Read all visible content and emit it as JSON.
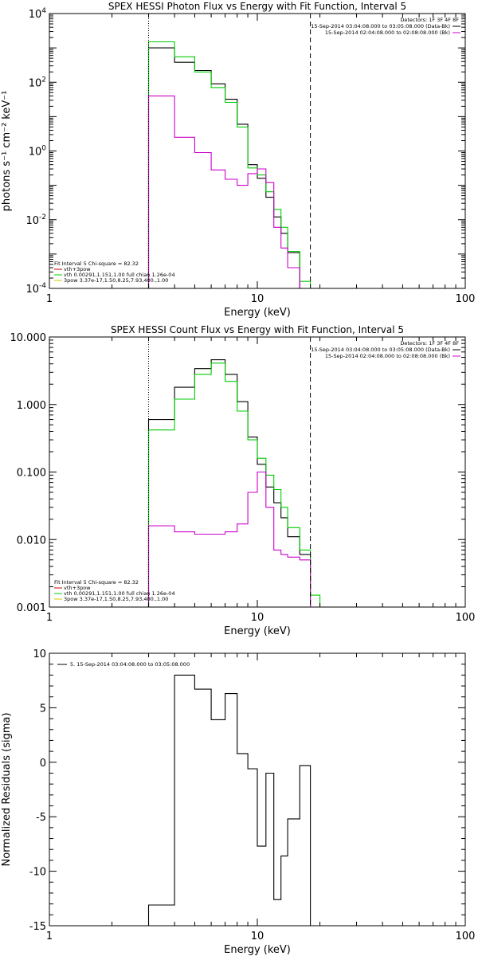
{
  "chart_data": [
    {
      "type": "line",
      "title": "SPEX HESSI Photon Flux vs Energy with Fit Function, Interval 5",
      "xlabel": "Energy (keV)",
      "ylabel": "photons s⁻¹ cm⁻² keV⁻¹",
      "x_scale": "log",
      "y_scale": "log",
      "xlim": [
        1,
        100
      ],
      "ylim": [
        0.0001,
        10000
      ],
      "x_ticks": [
        {
          "value": 1,
          "label": "1"
        },
        {
          "value": 10,
          "label": "10"
        },
        {
          "value": 100,
          "label": "100"
        }
      ],
      "y_ticks": [
        {
          "value": 0.0001,
          "base": "10",
          "exp": "-4"
        },
        {
          "value": 0.01,
          "base": "10",
          "exp": "-2"
        },
        {
          "value": 1,
          "base": "10",
          "exp": "0"
        },
        {
          "value": 100,
          "base": "10",
          "exp": "2"
        },
        {
          "value": 10000,
          "base": "10",
          "exp": "4"
        }
      ],
      "vlines": [
        {
          "x": 3.0,
          "style": "dotted"
        },
        {
          "x": 18.0,
          "style": "dashed"
        }
      ],
      "legend_top_right": {
        "header": "Detectors: 1F 3F 4F 8F",
        "items": [
          {
            "label": "15-Sep-2014 03:04:08.000 to 03:05:08.000 (Data-Bk)",
            "color": "#000000"
          },
          {
            "label": "15-Sep-2014 02:04:08.000 to 02:08:08.000 (Bk)",
            "color": "#cc00cc"
          }
        ]
      },
      "legend_bottom_left": {
        "header": "Fit Interval 5   Chi-square = 82.32",
        "items": [
          {
            "label": "vth+3pow",
            "color": "#cc0000"
          },
          {
            "label": "vth 0.00291,1.151,1.00  full chian 1.26e-04",
            "color": "#00cc00"
          },
          {
            "label": "3pow 3.37e-17,1.50,8.25,7.93,400.,1.00",
            "color": "#cccc00"
          }
        ]
      },
      "series": [
        {
          "name": "15-Sep-2014 03:04:08.000 to 03:05:08.000 (Data-Bk)",
          "color": "#000000",
          "edges": [
            3.0,
            4.0,
            5.0,
            6.0,
            7.0,
            8.0,
            9.0,
            10.0,
            11.0,
            12.0,
            13.0,
            14.0,
            16.0,
            18.0
          ],
          "values": [
            1000,
            380,
            220,
            90,
            32,
            6,
            0.4,
            0.16,
            0.045,
            0.012,
            0.004,
            0.0011,
            0.0001
          ]
        },
        {
          "name": "vth 0.00291,1.151,1.00  full chian 1.26e-04",
          "color": "#00cc00",
          "edges": [
            3.0,
            4.0,
            5.0,
            6.0,
            7.0,
            8.0,
            9.0,
            10.0,
            11.0,
            12.0,
            13.0,
            14.0,
            16.0,
            18.0,
            20.0
          ],
          "values": [
            1500,
            550,
            200,
            70,
            26,
            5,
            0.32,
            0.2,
            0.065,
            0.02,
            0.006,
            0.0012,
            0.00016,
            0.0001
          ]
        },
        {
          "name": "15-Sep-2014 02:04:08.000 to 02:08:08.000 (Bk)",
          "color": "#cc00cc",
          "edges": [
            3.0,
            4.0,
            5.0,
            6.0,
            7.0,
            8.0,
            9.0,
            10.0,
            11.0,
            12.0,
            13.0,
            14.0,
            16.0,
            18.0
          ],
          "values": [
            40,
            2.5,
            0.9,
            0.28,
            0.15,
            0.1,
            0.22,
            0.3,
            0.12,
            0.006,
            0.0015,
            0.0004,
            0.0001
          ]
        }
      ]
    },
    {
      "type": "line",
      "title": "SPEX HESSI Count Flux vs Energy with Fit Function, Interval 5",
      "xlabel": "Energy (keV)",
      "ylabel": "",
      "x_scale": "log",
      "y_scale": "log",
      "xlim": [
        1,
        100
      ],
      "ylim": [
        0.001,
        10
      ],
      "x_ticks": [
        {
          "value": 1,
          "label": "1"
        },
        {
          "value": 10,
          "label": "10"
        },
        {
          "value": 100,
          "label": "100"
        }
      ],
      "y_ticks": [
        {
          "value": 0.001,
          "label": "0.001"
        },
        {
          "value": 0.01,
          "label": "0.010"
        },
        {
          "value": 0.1,
          "label": "0.100"
        },
        {
          "value": 1,
          "label": "1.000"
        },
        {
          "value": 10,
          "label": "10.000"
        }
      ],
      "vlines": [
        {
          "x": 3.0,
          "style": "dotted"
        },
        {
          "x": 18.0,
          "style": "dashed"
        }
      ],
      "legend_top_right": {
        "header": "Detectors: 1F 3F 4F 8F",
        "items": [
          {
            "label": "15-Sep-2014 03:04:08.000 to 03:05:08.000 (Data-Bk)",
            "color": "#000000"
          },
          {
            "label": "15-Sep-2014 02:04:08.000 to 02:08:08.000 (Bk)",
            "color": "#cc00cc"
          }
        ]
      },
      "legend_bottom_left": {
        "header": "Fit Interval 5   Chi-square = 82.32",
        "items": [
          {
            "label": "vth+3pow",
            "color": "#cc0000"
          },
          {
            "label": "vth 0.00291,1.151,1.00  full chian 1.26e-04",
            "color": "#00cc00"
          },
          {
            "label": "3pow 3.37e-17,1.50,8.25,7.93,400.,1.00",
            "color": "#cccc00"
          }
        ]
      },
      "series": [
        {
          "name": "15-Sep-2014 03:04:08.000 to 03:05:08.000 (Data-Bk)",
          "color": "#000000",
          "edges": [
            3.0,
            4.0,
            5.0,
            6.0,
            7.0,
            8.0,
            9.0,
            10.0,
            11.0,
            12.0,
            13.0,
            14.0,
            16.0,
            18.0
          ],
          "values": [
            0.6,
            1.8,
            3.4,
            4.6,
            2.8,
            1.1,
            0.33,
            0.13,
            0.06,
            0.035,
            0.021,
            0.011,
            0.006
          ]
        },
        {
          "name": "vth 0.00291,1.151,1.00  full chian 1.26e-04",
          "color": "#00cc00",
          "edges": [
            3.0,
            4.0,
            5.0,
            6.0,
            7.0,
            8.0,
            9.0,
            10.0,
            11.0,
            12.0,
            13.0,
            14.0,
            16.0,
            18.0,
            20.0
          ],
          "values": [
            0.42,
            1.2,
            2.8,
            4.1,
            2.2,
            0.8,
            0.3,
            0.16,
            0.09,
            0.055,
            0.03,
            0.015,
            0.007,
            0.0015
          ]
        },
        {
          "name": "15-Sep-2014 02:04:08.000 to 02:08:08.000 (Bk)",
          "color": "#cc00cc",
          "edges": [
            3.0,
            4.0,
            5.0,
            6.0,
            7.0,
            8.0,
            9.0,
            10.0,
            11.0,
            12.0,
            13.0,
            14.0,
            16.0,
            18.0
          ],
          "values": [
            0.016,
            0.013,
            0.012,
            0.012,
            0.013,
            0.017,
            0.05,
            0.1,
            0.03,
            0.007,
            0.006,
            0.0055,
            0.005
          ]
        }
      ]
    },
    {
      "type": "line",
      "title": "",
      "xlabel": "Energy (keV)",
      "ylabel": "Normalized Residuals (sigma)",
      "x_scale": "log",
      "y_scale": "linear",
      "xlim": [
        1,
        100
      ],
      "ylim": [
        -15,
        10
      ],
      "x_ticks": [
        {
          "value": 1,
          "label": "1"
        },
        {
          "value": 10,
          "label": "10"
        },
        {
          "value": 100,
          "label": "100"
        }
      ],
      "y_ticks": [
        {
          "value": -15,
          "label": "-15"
        },
        {
          "value": -10,
          "label": "-10"
        },
        {
          "value": -5,
          "label": "-5"
        },
        {
          "value": 0,
          "label": "0"
        },
        {
          "value": 5,
          "label": "5"
        },
        {
          "value": 10,
          "label": "10"
        }
      ],
      "legend_top_left": {
        "items": [
          {
            "label": "5. 15-Sep-2014 03:04:08.000 to 03:05:08.000",
            "color": "#000000"
          }
        ]
      },
      "series": [
        {
          "name": "5. 15-Sep-2014 03:04:08.000 to 03:05:08.000",
          "color": "#000000",
          "edges": [
            3.0,
            4.0,
            5.0,
            6.0,
            7.0,
            8.0,
            9.0,
            10.0,
            11.0,
            12.0,
            13.0,
            14.0,
            16.0,
            18.0
          ],
          "values": [
            -13.1,
            8.0,
            6.7,
            3.9,
            6.3,
            0.8,
            -0.6,
            -7.7,
            -1.0,
            -12.6,
            -8.6,
            -5.2,
            -0.3
          ],
          "drop_to": -15
        }
      ]
    }
  ]
}
